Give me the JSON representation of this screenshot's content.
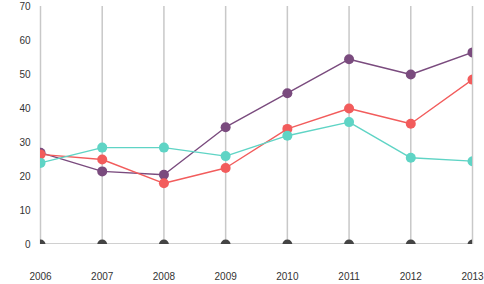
{
  "chart_data": {
    "type": "line",
    "x": [
      2006,
      2007,
      2008,
      2009,
      2010,
      2011,
      2012,
      2013
    ],
    "series": [
      {
        "color": "#7a4b7e",
        "values": [
          27,
          21.5,
          20.5,
          34.5,
          44.5,
          54.5,
          50,
          56.5
        ]
      },
      {
        "color": "#f25c5c",
        "values": [
          26.5,
          25,
          18,
          22.5,
          34,
          40,
          35.5,
          48.5
        ]
      },
      {
        "color": "#5fd4c5",
        "values": [
          24,
          28.5,
          28.5,
          26,
          32,
          36,
          25.5,
          24.5
        ]
      },
      {
        "color": "#444444",
        "values": [
          0,
          0,
          0,
          0,
          0,
          0,
          0,
          0
        ]
      }
    ],
    "xlim": [
      2006,
      2013
    ],
    "xticks": [
      2006,
      2007,
      2008,
      2009,
      2010,
      2011,
      2012,
      2013
    ],
    "ylim": [
      0,
      70
    ],
    "yticks": [
      0,
      10,
      20,
      30,
      40,
      50,
      60,
      70
    ],
    "grid": "x",
    "marker": "circle"
  }
}
